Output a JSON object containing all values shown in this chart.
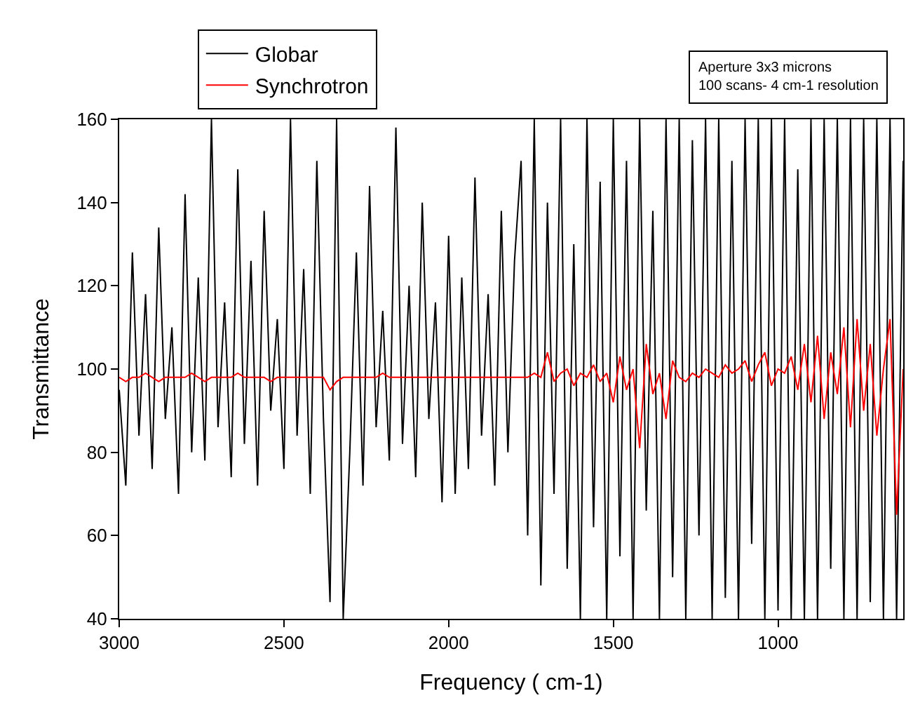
{
  "chart_data": {
    "type": "line",
    "xlabel": "Frequency ( cm-1)",
    "ylabel": "Transmittance",
    "annotations": [
      "Aperture 3x3 microns\n100 scans- 4 cm-1 resolution"
    ],
    "xlim": [
      3000,
      620
    ],
    "xticks": [
      3000,
      2500,
      2000,
      1500,
      1000
    ],
    "ylim": [
      40,
      160
    ],
    "yticks": [
      40,
      60,
      80,
      100,
      120,
      140,
      160
    ],
    "legend": "top left",
    "marker": "none",
    "line_style": "solid",
    "x": [
      3000,
      2980,
      2960,
      2940,
      2920,
      2900,
      2880,
      2860,
      2840,
      2820,
      2800,
      2780,
      2760,
      2740,
      2720,
      2700,
      2680,
      2660,
      2640,
      2620,
      2600,
      2580,
      2560,
      2540,
      2520,
      2500,
      2480,
      2460,
      2440,
      2420,
      2400,
      2380,
      2360,
      2340,
      2320,
      2300,
      2280,
      2260,
      2240,
      2220,
      2200,
      2180,
      2160,
      2140,
      2120,
      2100,
      2080,
      2060,
      2040,
      2020,
      2000,
      1980,
      1960,
      1940,
      1920,
      1900,
      1880,
      1860,
      1840,
      1820,
      1800,
      1780,
      1760,
      1740,
      1720,
      1700,
      1680,
      1660,
      1640,
      1620,
      1600,
      1580,
      1560,
      1540,
      1520,
      1500,
      1480,
      1460,
      1440,
      1420,
      1400,
      1380,
      1360,
      1340,
      1320,
      1300,
      1280,
      1260,
      1240,
      1220,
      1200,
      1180,
      1160,
      1140,
      1120,
      1100,
      1080,
      1060,
      1040,
      1020,
      1000,
      980,
      960,
      940,
      920,
      900,
      880,
      860,
      840,
      820,
      800,
      780,
      760,
      740,
      720,
      700,
      680,
      660,
      640,
      620
    ],
    "series": [
      {
        "name": "Globar",
        "color": "#000000",
        "values": [
          95,
          72,
          128,
          84,
          118,
          76,
          134,
          88,
          110,
          70,
          142,
          80,
          122,
          78,
          160,
          86,
          116,
          74,
          148,
          82,
          126,
          72,
          138,
          90,
          112,
          76,
          160,
          84,
          124,
          70,
          150,
          88,
          44,
          160,
          40,
          80,
          128,
          72,
          144,
          86,
          114,
          78,
          158,
          82,
          120,
          74,
          140,
          88,
          116,
          68,
          132,
          70,
          122,
          76,
          146,
          84,
          118,
          72,
          138,
          80,
          126,
          150,
          60,
          160,
          48,
          140,
          70,
          160,
          52,
          130,
          40,
          160,
          62,
          145,
          40,
          160,
          55,
          150,
          40,
          160,
          66,
          138,
          40,
          160,
          50,
          160,
          40,
          155,
          60,
          160,
          40,
          160,
          45,
          150,
          40,
          160,
          58,
          160,
          40,
          160,
          42,
          160,
          40,
          148,
          40,
          160,
          40,
          160,
          52,
          160,
          40,
          160,
          40,
          160,
          44,
          160,
          40,
          160,
          40,
          150
        ]
      },
      {
        "name": "Synchrotron",
        "color": "#ff0000",
        "values": [
          98,
          97,
          98,
          98,
          99,
          98,
          97,
          98,
          98,
          98,
          98,
          99,
          98,
          97,
          98,
          98,
          98,
          98,
          99,
          98,
          98,
          98,
          98,
          97,
          98,
          98,
          98,
          98,
          98,
          98,
          98,
          98,
          95,
          97,
          98,
          98,
          98,
          98,
          98,
          98,
          99,
          98,
          98,
          98,
          98,
          98,
          98,
          98,
          98,
          98,
          98,
          98,
          98,
          98,
          98,
          98,
          98,
          98,
          98,
          98,
          98,
          98,
          98,
          99,
          98,
          104,
          97,
          99,
          100,
          96,
          99,
          98,
          101,
          97,
          99,
          92,
          103,
          95,
          100,
          81,
          106,
          94,
          99,
          88,
          102,
          98,
          97,
          99,
          98,
          100,
          99,
          98,
          101,
          99,
          100,
          102,
          97,
          101,
          104,
          96,
          100,
          99,
          103,
          95,
          106,
          92,
          108,
          88,
          104,
          94,
          110,
          86,
          112,
          90,
          106,
          84,
          100,
          112,
          65,
          100
        ]
      }
    ]
  }
}
